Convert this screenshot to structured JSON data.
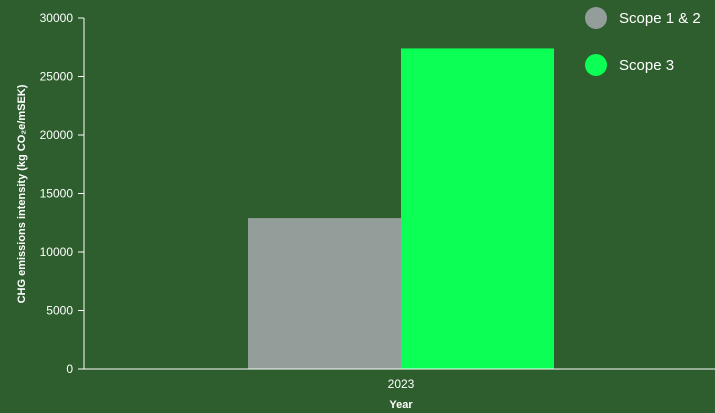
{
  "chart_data": {
    "type": "bar",
    "categories": [
      "2023"
    ],
    "series": [
      {
        "name": "Scope 1 & 2",
        "values": [
          12900
        ],
        "color": "#939e9b"
      },
      {
        "name": "Scope 3",
        "values": [
          27400
        ],
        "color": "#0bff55"
      }
    ],
    "xlabel": "Year",
    "ylabel": "CHG emissions intensity (kg CO₂e/mSEK)",
    "ylim": [
      0,
      30000
    ],
    "yticks": [
      0,
      5000,
      10000,
      15000,
      20000,
      25000,
      30000
    ],
    "grid": false,
    "legend_position": "top-right"
  },
  "colors": {
    "background": "#2e5e2e",
    "axis": "#ffffff",
    "text": "#ffffff"
  }
}
